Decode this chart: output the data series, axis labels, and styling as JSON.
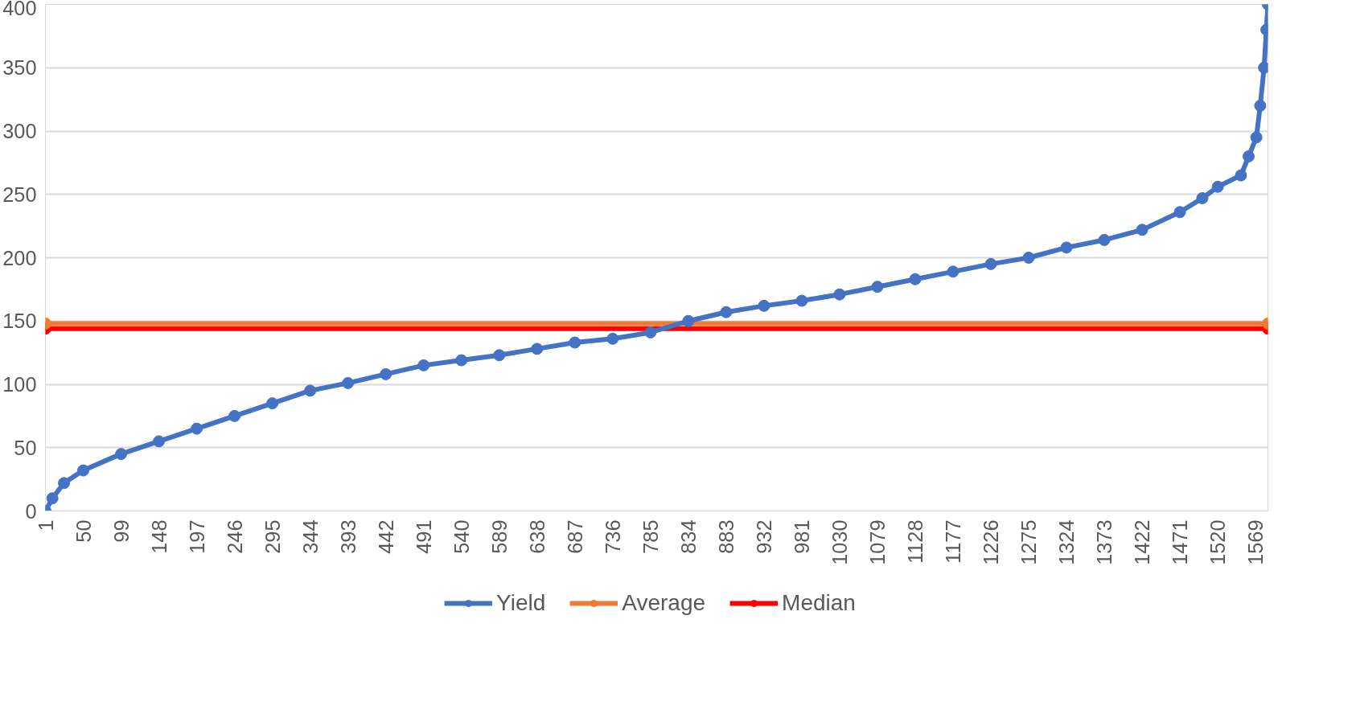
{
  "chart_data": {
    "type": "line",
    "marker": "circle",
    "grid": "y",
    "legend": "bottom",
    "xlim": [
      1,
      1585
    ],
    "xticks": [
      1,
      50,
      99,
      148,
      197,
      246,
      295,
      344,
      393,
      442,
      491,
      540,
      589,
      638,
      687,
      736,
      785,
      834,
      883,
      932,
      981,
      1030,
      1079,
      1128,
      1177,
      1226,
      1275,
      1324,
      1373,
      1422,
      1471,
      1520,
      1569
    ],
    "ylim": [
      0,
      400
    ],
    "yticks": [
      0,
      50,
      100,
      150,
      200,
      250,
      300,
      350,
      400
    ],
    "series": [
      {
        "name": "Yield",
        "color": "#4472c4",
        "x": [
          1,
          10,
          25,
          50,
          99,
          148,
          197,
          246,
          295,
          344,
          393,
          442,
          491,
          540,
          589,
          638,
          687,
          736,
          785,
          834,
          883,
          932,
          981,
          1030,
          1079,
          1128,
          1177,
          1226,
          1275,
          1324,
          1373,
          1422,
          1471,
          1500,
          1520,
          1550,
          1560,
          1570,
          1575,
          1580,
          1583,
          1585
        ],
        "values": [
          0,
          10,
          22,
          32,
          45,
          55,
          65,
          75,
          85,
          95,
          101,
          108,
          115,
          119,
          123,
          128,
          133,
          136,
          141,
          150,
          157,
          162,
          166,
          171,
          177,
          183,
          189,
          195,
          200,
          208,
          214,
          222,
          236,
          247,
          256,
          265,
          280,
          295,
          320,
          350,
          380,
          400
        ]
      },
      {
        "name": "Average",
        "color": "#ed7d31",
        "x": [
          1,
          1585
        ],
        "values": [
          148,
          148
        ]
      },
      {
        "name": "Median",
        "color": "#ff0000",
        "x": [
          1,
          1585
        ],
        "values": [
          144,
          144
        ]
      }
    ]
  }
}
